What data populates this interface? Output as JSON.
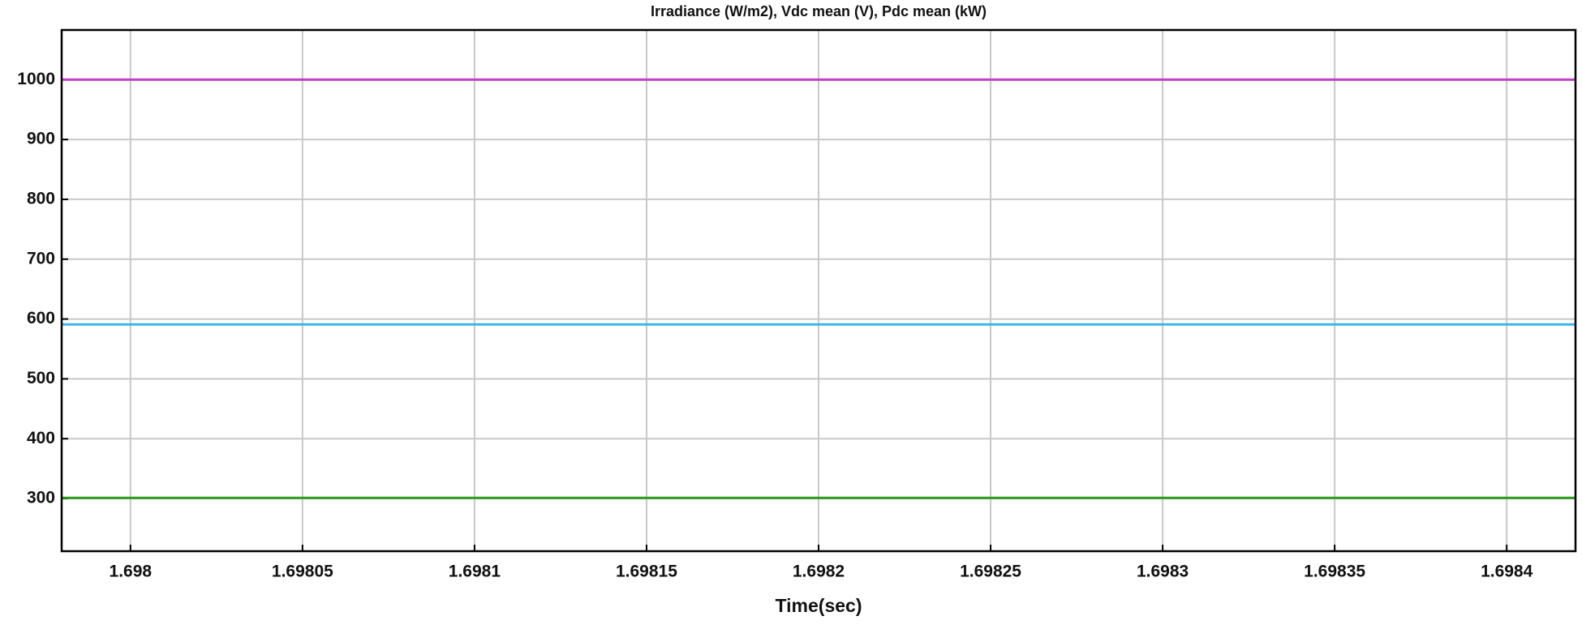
{
  "chart_data": {
    "type": "line",
    "title": "Irradiance (W/m2), Vdc mean (V), Pdc mean (kW)",
    "x_label": "Time(sec)",
    "x": [
      1.69798,
      1.69842
    ],
    "series": [
      {
        "color": "#c23fc8",
        "values": [
          1000,
          1000
        ]
      },
      {
        "color": "#3fb6ea",
        "values": [
          591,
          591
        ]
      },
      {
        "color": "#2e9a1e",
        "values": [
          301,
          301
        ]
      }
    ],
    "xlim": [
      1.69798,
      1.69842
    ],
    "ylim": [
      212,
      1083
    ],
    "xticks": [
      1.698,
      1.69805,
      1.6981,
      1.69815,
      1.6982,
      1.69825,
      1.6983,
      1.69835,
      1.6984
    ],
    "yticks": [
      300,
      400,
      500,
      600,
      700,
      800,
      900,
      1000
    ],
    "grid": true
  }
}
